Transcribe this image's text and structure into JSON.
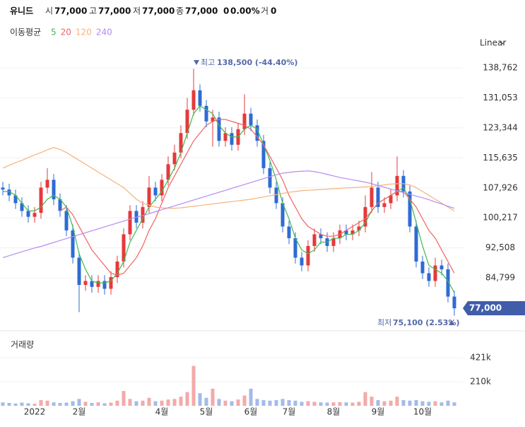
{
  "header": {
    "name": "유니드",
    "open_label": "시",
    "open": "77,000",
    "high_label": "고",
    "high": "77,000",
    "low_label": "저",
    "low": "77,000",
    "close_label": "종",
    "close": "77,000",
    "change": "0",
    "change_pct": "0.00%",
    "volume_label": "거",
    "volume": "0"
  },
  "chart_data": {
    "type": "candlestick",
    "ma_legend_title": "이동평균",
    "scale_mode": "Linear",
    "volume_title": "거래량",
    "high_annotation": {
      "label": "최고",
      "text": "138,500 (-44.40%)"
    },
    "low_annotation": {
      "label": "최저",
      "text": "75,100 (2.53%)"
    },
    "up_color": "#e5393b",
    "down_color": "#2e6bd6",
    "volume_up_color": "#f4a9a9",
    "volume_down_color": "#a3bbe8",
    "categories": [
      null,
      null,
      null,
      null,
      null,
      "2022",
      null,
      null,
      null,
      null,
      null,
      null,
      "2월",
      null,
      null,
      null,
      null,
      null,
      null,
      null,
      null,
      null,
      null,
      null,
      null,
      "4월",
      null,
      null,
      null,
      null,
      null,
      null,
      "5월",
      null,
      null,
      null,
      null,
      null,
      null,
      "6월",
      null,
      null,
      null,
      null,
      null,
      "7월",
      null,
      null,
      null,
      null,
      null,
      null,
      "8월",
      null,
      null,
      null,
      null,
      null,
      null,
      "9월",
      null,
      null,
      null,
      null,
      null,
      null,
      "10월",
      null,
      null,
      null,
      null,
      null
    ],
    "open": [
      108000,
      107500,
      106000,
      104000,
      102000,
      100500,
      101500,
      108000,
      110000,
      105000,
      102000,
      97000,
      90000,
      83000,
      84000,
      82500,
      84000,
      82000,
      85000,
      89000,
      96000,
      102000,
      99000,
      103000,
      108000,
      106000,
      110000,
      114000,
      117000,
      122000,
      128000,
      133000,
      129000,
      125000,
      126000,
      120000,
      122000,
      119000,
      123000,
      127000,
      124000,
      120000,
      113000,
      108000,
      104000,
      98000,
      95000,
      90000,
      88000,
      93000,
      96000,
      95000,
      93000,
      95000,
      97000,
      96000,
      97000,
      98000,
      103000,
      108000,
      103000,
      104000,
      106000,
      111000,
      107000,
      98000,
      89000,
      86000,
      84000,
      88000,
      87000,
      80000
    ],
    "high": [
      109500,
      109000,
      107500,
      105500,
      103500,
      103000,
      109500,
      113000,
      111500,
      106500,
      103500,
      98500,
      91500,
      85500,
      85500,
      85500,
      85500,
      86500,
      90500,
      97500,
      103500,
      103500,
      104500,
      111000,
      109500,
      111500,
      116000,
      119000,
      124000,
      131000,
      138500,
      134500,
      130500,
      128000,
      127500,
      123500,
      123500,
      124500,
      132000,
      128500,
      125500,
      121500,
      114500,
      109500,
      105500,
      99500,
      96500,
      91500,
      94500,
      97500,
      97500,
      96500,
      96500,
      98500,
      98500,
      98500,
      99500,
      106000,
      112000,
      109500,
      105500,
      107500,
      116000,
      112500,
      108500,
      99500,
      90500,
      87500,
      90000,
      89500,
      88500,
      81500
    ],
    "low": [
      106000,
      104500,
      102500,
      100500,
      99000,
      99000,
      100000,
      106500,
      103500,
      100500,
      95500,
      88500,
      76000,
      81500,
      81000,
      81000,
      80500,
      80500,
      83500,
      87500,
      94500,
      97500,
      97500,
      101500,
      104500,
      104500,
      108500,
      112500,
      115500,
      120500,
      126500,
      127500,
      123500,
      118500,
      118500,
      118500,
      117500,
      117500,
      121500,
      122500,
      118500,
      111500,
      106500,
      102500,
      96500,
      93500,
      88500,
      86500,
      86500,
      91500,
      93500,
      91500,
      91500,
      93500,
      94500,
      94500,
      95500,
      96500,
      101500,
      101500,
      101500,
      102500,
      104500,
      105500,
      96500,
      87500,
      84500,
      82500,
      82500,
      85500,
      78500,
      75100
    ],
    "close": [
      107500,
      106000,
      104000,
      102000,
      100500,
      101500,
      108000,
      110000,
      105000,
      102000,
      97000,
      90000,
      83000,
      84000,
      82500,
      84000,
      82000,
      85000,
      89000,
      96000,
      102000,
      99000,
      103000,
      108000,
      106000,
      110000,
      114000,
      117000,
      122000,
      128000,
      133000,
      129000,
      125000,
      126000,
      120000,
      122000,
      119000,
      123000,
      127000,
      124000,
      120000,
      113000,
      108000,
      104000,
      98000,
      95000,
      90000,
      88000,
      93000,
      96000,
      95000,
      93000,
      95000,
      97000,
      96000,
      97000,
      98000,
      103000,
      108000,
      103000,
      104000,
      106000,
      111000,
      107000,
      98000,
      89000,
      86000,
      84000,
      88000,
      87000,
      80000,
      77000
    ],
    "volume": [
      30000,
      25000,
      20000,
      28000,
      22000,
      18000,
      50000,
      45000,
      30000,
      25000,
      28000,
      40000,
      60000,
      35000,
      25000,
      30000,
      22000,
      28000,
      45000,
      130000,
      60000,
      40000,
      45000,
      70000,
      40000,
      45000,
      55000,
      60000,
      80000,
      120000,
      350000,
      110000,
      70000,
      150000,
      60000,
      45000,
      40000,
      55000,
      90000,
      150000,
      60000,
      50000,
      45000,
      50000,
      60000,
      50000,
      45000,
      35000,
      40000,
      35000,
      30000,
      28000,
      30000,
      32000,
      30000,
      28000,
      35000,
      120000,
      80000,
      50000,
      40000,
      45000,
      80000,
      50000,
      45000,
      50000,
      40000,
      35000,
      40000,
      30000,
      45000,
      30000
    ],
    "series": [
      {
        "name": "5",
        "color": "#3dba4e",
        "values": [
          107000,
          107000,
          106000,
          104000,
          102000,
          102000,
          103000,
          105000,
          106000,
          105000,
          103000,
          98000,
          91000,
          87000,
          84000,
          83500,
          83500,
          84000,
          86000,
          89000,
          94000,
          97000,
          100000,
          103000,
          105000,
          107000,
          110000,
          113000,
          117000,
          122000,
          127000,
          129000,
          128000,
          127000,
          124000,
          122000,
          121000,
          121000,
          123000,
          124000,
          123000,
          119000,
          115000,
          110000,
          104000,
          100000,
          95000,
          92000,
          91000,
          92000,
          94000,
          94000,
          95000,
          95000,
          96000,
          96000,
          97000,
          99000,
          102000,
          104000,
          105000,
          106000,
          107000,
          108000,
          105000,
          99000,
          93000,
          88000,
          87000,
          86000,
          84000,
          81000
        ]
      },
      {
        "name": "20",
        "color": "#f06363",
        "values": [
          null,
          null,
          null,
          null,
          null,
          null,
          null,
          null,
          null,
          102000,
          103000,
          101000,
          98000,
          95000,
          92000,
          90000,
          88000,
          86000,
          85500,
          86000,
          88000,
          90000,
          93000,
          97000,
          100000,
          104000,
          108000,
          111000,
          114000,
          117000,
          120000,
          122000,
          124000,
          125000,
          125500,
          125500,
          125000,
          124500,
          124000,
          123000,
          121000,
          119000,
          116000,
          113000,
          110000,
          106000,
          103000,
          100000,
          98000,
          97000,
          96000,
          95500,
          95500,
          96000,
          97000,
          98000,
          99000,
          100000,
          102000,
          104000,
          105000,
          106000,
          107000,
          107000,
          105000,
          103000,
          100000,
          97000,
          95000,
          92000,
          89000,
          86000
        ]
      },
      {
        "name": "120",
        "color": "#f7b27a",
        "values": [
          113000,
          113700,
          114400,
          115000,
          115700,
          116400,
          117000,
          117700,
          118300,
          117800,
          117000,
          116000,
          115000,
          114000,
          113000,
          112000,
          111000,
          110000,
          109000,
          108000,
          106500,
          105000,
          104000,
          103500,
          103000,
          102800,
          102700,
          102700,
          102800,
          103000,
          103200,
          103400,
          103600,
          103800,
          104000,
          104200,
          104400,
          104600,
          104800,
          105000,
          105300,
          105600,
          105900,
          106200,
          106500,
          106800,
          107000,
          107200,
          107300,
          107400,
          107500,
          107600,
          107700,
          107800,
          107900,
          108000,
          108100,
          108200,
          108300,
          108500,
          108700,
          108900,
          109000,
          109000,
          108700,
          108000,
          107000,
          106000,
          105000,
          104000,
          103000,
          102000
        ]
      },
      {
        "name": "240",
        "color": "#b48bf2",
        "values": [
          90000,
          90500,
          91000,
          91500,
          92000,
          92500,
          92900,
          93400,
          93900,
          94400,
          94900,
          95400,
          95900,
          96400,
          96900,
          97400,
          97900,
          98400,
          98900,
          99400,
          99900,
          100400,
          100800,
          101300,
          101800,
          102300,
          102800,
          103300,
          103800,
          104300,
          104800,
          105300,
          105800,
          106300,
          106800,
          107300,
          107800,
          108300,
          108800,
          109300,
          109800,
          110300,
          110800,
          111300,
          111700,
          111900,
          112100,
          112200,
          112300,
          112100,
          111800,
          111400,
          111000,
          110600,
          110300,
          110000,
          109700,
          109400,
          109000,
          108500,
          108100,
          107600,
          107200,
          106700,
          106300,
          105800,
          105400,
          104900,
          104300,
          103800,
          103200,
          102700
        ]
      }
    ],
    "ylim": [
      72650,
      142570
    ],
    "yticks": [
      {
        "value": 84799,
        "label": "84,799"
      },
      {
        "value": 92508,
        "label": "92,508"
      },
      {
        "value": 100217,
        "label": "100,217"
      },
      {
        "value": 107926,
        "label": "107,926"
      },
      {
        "value": 115635,
        "label": "115,635"
      },
      {
        "value": 123344,
        "label": "123,344"
      },
      {
        "value": 131053,
        "label": "131,053"
      },
      {
        "value": 138762,
        "label": "138,762"
      }
    ],
    "current_price": {
      "value": 77000,
      "label": "77,000"
    },
    "current_price_color": "#3f5da8",
    "volume_lim": [
      0,
      595000
    ],
    "volume_ticks": [
      {
        "value": 210000,
        "label": "210k"
      },
      {
        "value": 421000,
        "label": "421k"
      }
    ],
    "grid": true
  }
}
